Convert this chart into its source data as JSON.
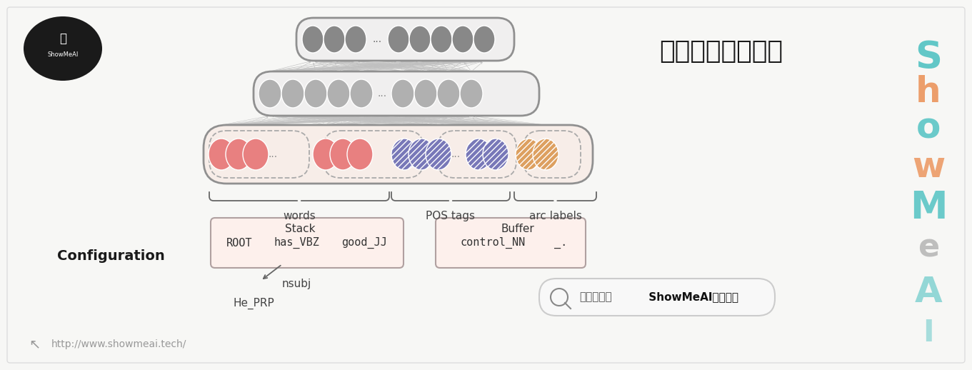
{
  "title": "前馈神经网络模型",
  "title_fontsize": 26,
  "title_color": "#1a1a1a",
  "bg_color": "#f7f7f5",
  "url_text": "http://www.showmeai.tech/",
  "config_label": "Configuration",
  "stack_label": "Stack",
  "buffer_label": "Buffer",
  "words_label": "words",
  "pos_label": "POS tags",
  "arc_label": "arc labels",
  "nsubj_label": "nsubj",
  "he_prp_label": "He_PRP",
  "input_layer_color": "#f7ede8",
  "pink_node_color": "#e88080",
  "blue_node_color": "#7878b8",
  "orange_node_color": "#dda060",
  "gray_dark_color": "#888888",
  "gray_light_color": "#b8b8b8",
  "box_border_color": "#909090",
  "dashed_border_color": "#aaaaaa",
  "stack_box_color": "#fdf0ec",
  "stack_box_border": "#b0a0a0",
  "showmeai_teal": "#30b8b8",
  "showmeai_orange": "#e87830",
  "showmeai_gray": "#909090",
  "watermark_letters": [
    "S",
    "h",
    "o",
    "w",
    "M",
    "e",
    "A",
    "I"
  ],
  "watermark_colors": [
    "#30b8b8",
    "#e87830",
    "#30b8b8",
    "#e87830",
    "#30b8b8",
    "#909090",
    "#30b8b8",
    "#30b8b8"
  ]
}
